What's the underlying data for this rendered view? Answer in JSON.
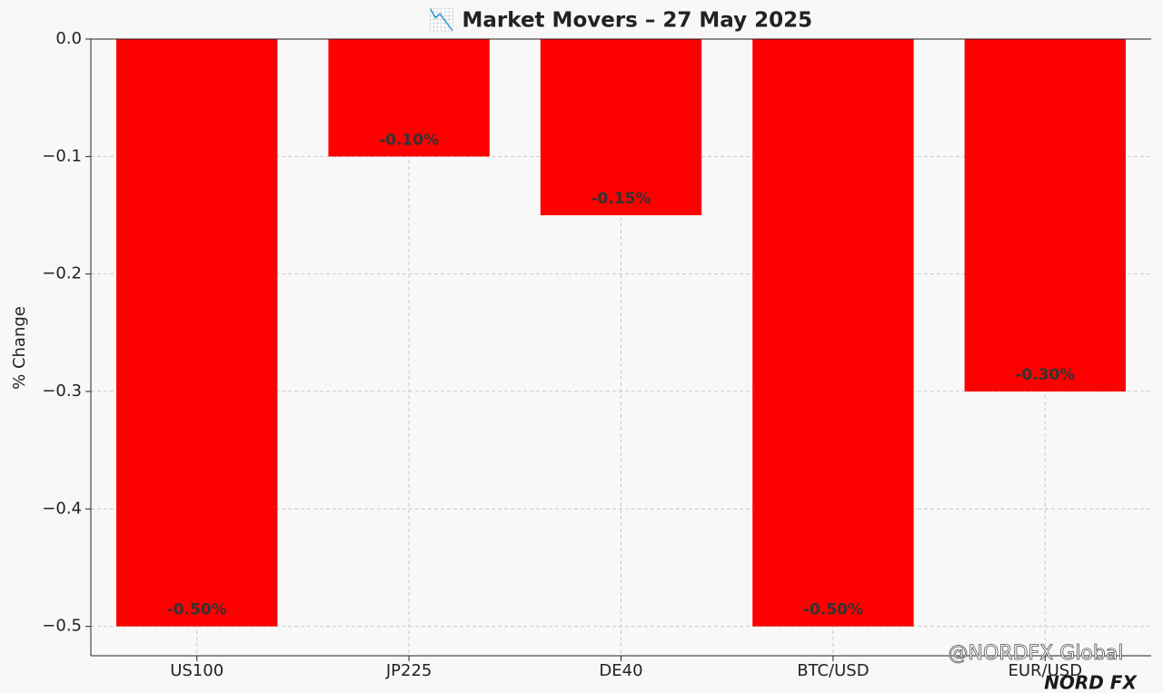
{
  "chart_data": {
    "type": "bar",
    "title": "📉 Market Movers – 27 May 2025",
    "ylabel": "% Change",
    "categories": [
      "US100",
      "JP225",
      "DE40",
      "BTC/USD",
      "EUR/USD"
    ],
    "values": [
      -0.5,
      -0.1,
      -0.15,
      -0.5,
      -0.3
    ],
    "value_labels": [
      "-0.50%",
      "-0.10%",
      "-0.15%",
      "-0.50%",
      "-0.30%"
    ],
    "color": "#ff0000",
    "ylim": [
      -0.525,
      0
    ],
    "yticks": [
      {
        "value": 0,
        "label": "0.0"
      },
      {
        "value": -0.1,
        "label": "−0.1"
      },
      {
        "value": -0.2,
        "label": "−0.2"
      },
      {
        "value": -0.3,
        "label": "−0.3"
      },
      {
        "value": -0.4,
        "label": "−0.4"
      },
      {
        "value": -0.5,
        "label": "−0.5"
      }
    ],
    "grid": true,
    "watermark": "@NORDFX Global",
    "logo": "NORD FX"
  }
}
